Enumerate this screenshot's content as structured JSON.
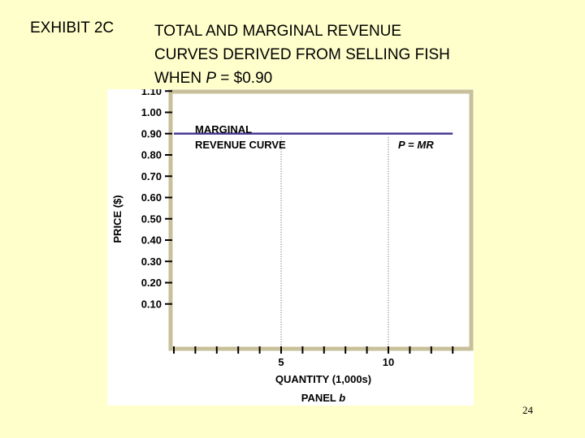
{
  "exhibit": {
    "label": "EXHIBIT 2C",
    "title_parts": [
      "TOTAL AND MARGINAL REVENUE",
      "CURVES DERIVED FROM SELLING FISH",
      "WHEN ",
      "P",
      " = $0.90"
    ]
  },
  "chart_data": {
    "type": "line",
    "ylabel": "PRICE ($)",
    "xlabel": "QUANTITY (1,000s)",
    "panel_prefix": "PANEL ",
    "panel_letter": "b",
    "y_ticks": [
      "1.10",
      "1.00",
      "0.90",
      "0.80",
      "0.70",
      "0.60",
      "0.50",
      "0.40",
      "0.30",
      "0.20",
      "0.10"
    ],
    "y_tick_values": [
      1.1,
      1.0,
      0.9,
      0.8,
      0.7,
      0.6,
      0.5,
      0.4,
      0.3,
      0.2,
      0.1
    ],
    "x_tick_labels": [
      {
        "value": 5,
        "label": "5"
      },
      {
        "value": 10,
        "label": "10"
      }
    ],
    "xlim": [
      0,
      13
    ],
    "ylim": [
      0,
      1.15
    ],
    "series": [
      {
        "x": [
          0,
          13
        ],
        "y": [
          0.9,
          0.9
        ],
        "color": "#4b3a96"
      }
    ],
    "reference_lines_x": [
      5,
      10
    ],
    "annotations": {
      "curve_label_line1": "MARGINAL",
      "curve_label_line2": "REVENUE CURVE",
      "p_label": "P",
      "eq_label": " = ",
      "mr_label": "MR"
    },
    "colors": {
      "frame": "#c8c09a",
      "axis": "#000000",
      "curve": "#4b3a96",
      "background": "#ffffff"
    }
  },
  "page_number": "24"
}
